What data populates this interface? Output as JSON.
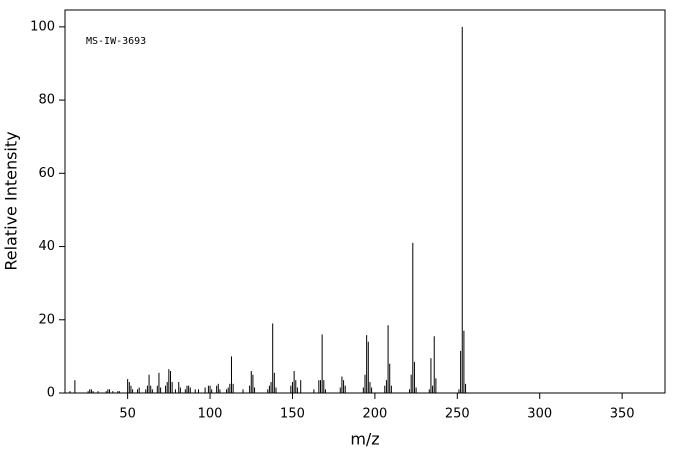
{
  "chart_data": {
    "type": "stem",
    "annotation": "MS-IW-3693",
    "xlabel": "m/z",
    "ylabel": "Relative Intensity",
    "color": "#000000",
    "x": [
      15,
      18,
      26,
      27,
      28,
      29,
      32,
      37,
      38,
      39,
      41,
      44,
      45,
      50,
      51,
      52,
      53,
      56,
      57,
      61,
      62,
      63,
      64,
      65,
      68,
      69,
      70,
      73,
      74,
      75,
      76,
      77,
      79,
      81,
      82,
      85,
      86,
      87,
      88,
      91,
      93,
      97,
      99,
      100,
      101,
      104,
      105,
      106,
      110,
      111,
      112,
      113,
      114,
      120,
      124,
      125,
      126,
      127,
      135,
      136,
      137,
      138,
      139,
      140,
      149,
      150,
      151,
      152,
      153,
      155,
      163,
      166,
      167,
      168,
      169,
      170,
      179,
      180,
      181,
      182,
      193,
      194,
      195,
      196,
      197,
      198,
      206,
      207,
      208,
      209,
      210,
      221,
      222,
      223,
      224,
      225,
      233,
      234,
      235,
      236,
      237,
      251,
      252,
      253,
      254,
      255
    ],
    "values": [
      0.5,
      3.5,
      0.5,
      1,
      1,
      0.5,
      0.5,
      0.5,
      1,
      1,
      0.5,
      0.5,
      0.5,
      3.8,
      3,
      2,
      1,
      1,
      1.5,
      1,
      2,
      5,
      2,
      1,
      2,
      5.5,
      1.5,
      2,
      3,
      6.5,
      6,
      3,
      1,
      3,
      1.5,
      1,
      2,
      2,
      1.5,
      1,
      1,
      1.5,
      2,
      2,
      1,
      2,
      2.5,
      1,
      1,
      1.5,
      2.5,
      10,
      2.5,
      1,
      2,
      6,
      5,
      1.5,
      1,
      2,
      3,
      19,
      5.5,
      1.5,
      2,
      3,
      6,
      3.5,
      1.5,
      3.5,
      1,
      3.5,
      3.5,
      16,
      3.5,
      1,
      1.5,
      4.5,
      3.5,
      2,
      1.5,
      5,
      15.8,
      14,
      3,
      1.5,
      2,
      3.5,
      18.5,
      8,
      2,
      1,
      5,
      41,
      8.5,
      1.5,
      1,
      9.5,
      2,
      15.5,
      4,
      1,
      11.5,
      100,
      17,
      2.5
    ],
    "xlim": [
      12,
      376
    ],
    "ylim": [
      0,
      104.6
    ],
    "xticks": [
      50,
      100,
      150,
      200,
      250,
      300,
      350
    ],
    "yticks": [
      0,
      20,
      40,
      60,
      80,
      100
    ]
  }
}
